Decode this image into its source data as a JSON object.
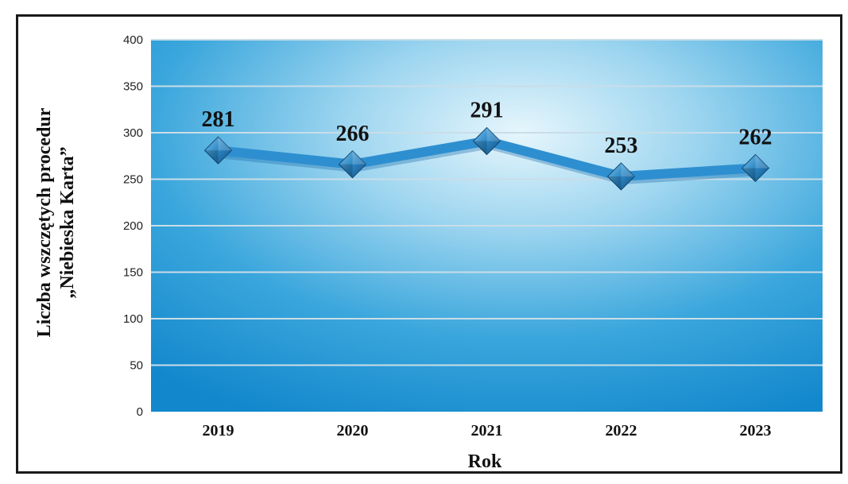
{
  "chart_data": {
    "type": "line",
    "categories": [
      "2019",
      "2020",
      "2021",
      "2022",
      "2023"
    ],
    "series": [
      {
        "values": [
          281,
          266,
          291,
          253,
          262
        ]
      }
    ],
    "data_labels": [
      "281",
      "266",
      "291",
      "253",
      "262"
    ],
    "xlabel": "Rok",
    "ylabel_lines": [
      "Liczba wszczętych procedur",
      "„Niebieska Karta”"
    ],
    "ylim": [
      0,
      400
    ],
    "yticks": [
      0,
      50,
      100,
      150,
      200,
      250,
      300,
      350,
      400
    ],
    "grid": true,
    "legend": "none",
    "colors": {
      "line": "#2e8fd0",
      "marker": "#1f6fae",
      "plot_bg_light": "#d9f0fb",
      "plot_bg_dark": "#1b8fd2",
      "grid": "#c9dde8"
    }
  }
}
